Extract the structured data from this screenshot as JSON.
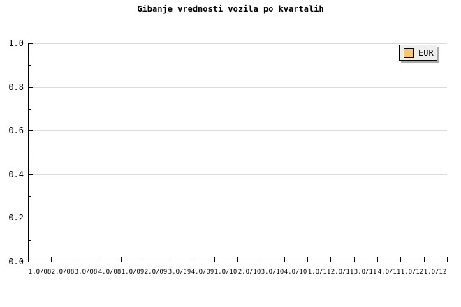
{
  "title": "Gibanje vrednosti vozila po kvartalih",
  "legend": {
    "position": "top-right",
    "items": [
      {
        "label": "EUR",
        "swatch_color": "#FAC66A"
      }
    ]
  },
  "chart_data": {
    "type": "line",
    "title": "Gibanje vrednosti vozila po kvartalih",
    "categories": [
      "1.Q/08",
      "2.Q/08",
      "3.Q/08",
      "4.Q/08",
      "1.Q/09",
      "2.Q/09",
      "3.Q/09",
      "4.Q/09",
      "1.Q/10",
      "2.Q/10",
      "3.Q/10",
      "4.Q/10",
      "1.Q/11",
      "2.Q/11",
      "3.Q/11",
      "4.Q/11",
      "1.Q/12",
      "1.Q/12"
    ],
    "series": [
      {
        "name": "EUR",
        "values": []
      }
    ],
    "xlabel": "",
    "ylabel": "",
    "ylim": [
      0.0,
      1.0
    ],
    "y_ticks": [
      0.0,
      0.2,
      0.4,
      0.6,
      0.8,
      1.0
    ],
    "y_minor_step": 0.1,
    "grid": "horizontal",
    "legend_position": "top-right",
    "colors": {
      "background": "#FFFFFF",
      "grid": "#DCDCDC",
      "axis": "#000000",
      "text": "#000000",
      "legend_bg": "#EFEFEF",
      "legend_shadow": "#AAAAAA",
      "series_eur": "#FAC66A"
    }
  }
}
